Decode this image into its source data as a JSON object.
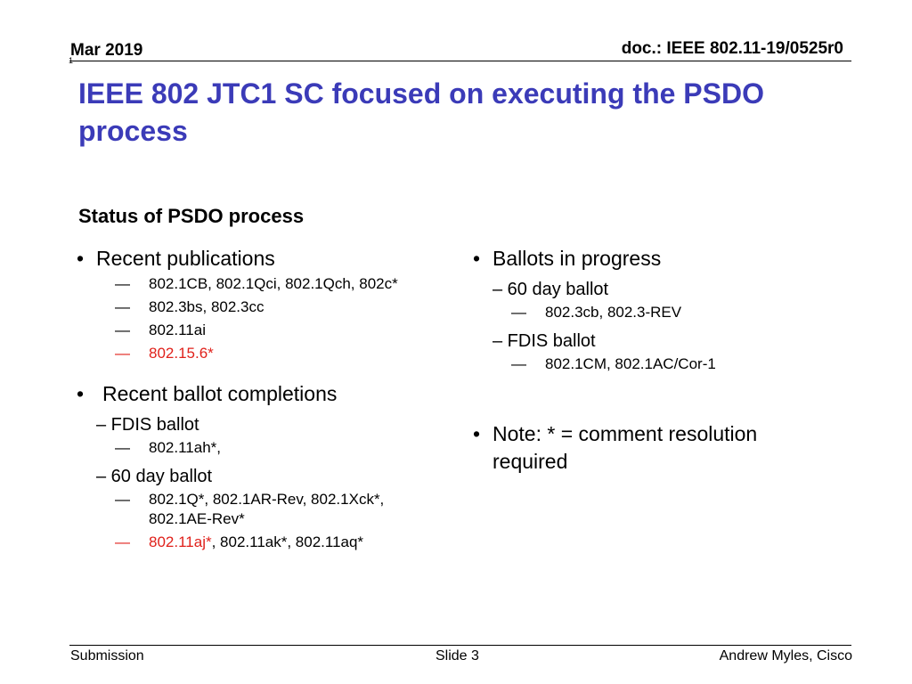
{
  "header": {
    "date": "Mar 2019",
    "doc_id": "doc.: IEEE 802.11-19/0525r0",
    "mark": "1"
  },
  "title": "IEEE 802 JTC1 SC focused on executing the PSDO process",
  "subheading": "Status of PSDO process",
  "left": {
    "recent_publications": {
      "label": "Recent publications",
      "items": [
        "802.1CB, 802.1Qci, 802.1Qch, 802c*",
        "802.3bs, 802.3cc",
        "802.11ai",
        "802.15.6*"
      ]
    },
    "recent_ballot_completions": {
      "label": "Recent ballot completions",
      "fdis": {
        "label": "– FDIS ballot",
        "items": [
          "802.11ah*,"
        ]
      },
      "day60": {
        "label": "– 60 day ballot",
        "items": [
          "802.1Q*, 802.1AR-Rev, 802.1Xck*, 802.1AE-Rev*"
        ],
        "last_red": "802.11aj*",
        "last_rest": ", 802.11ak*, 802.11aq*"
      }
    }
  },
  "right": {
    "ballots": {
      "label": "Ballots in progress",
      "day60": {
        "label": "– 60 day ballot",
        "items": [
          "802.3cb, 802.3-REV"
        ]
      },
      "fdis": {
        "label": "– FDIS ballot",
        "items": [
          "802.1CM, 802.1AC/Cor-1"
        ]
      }
    },
    "note": "Note: * = comment resolution required"
  },
  "footer": {
    "left": "Submission",
    "center": "Slide 3",
    "right": "Andrew Myles, Cisco"
  },
  "bullet_char": "•",
  "dash_char": "—",
  "colors": {
    "title": "#3b3bb8",
    "highlight": "#e0211b"
  }
}
